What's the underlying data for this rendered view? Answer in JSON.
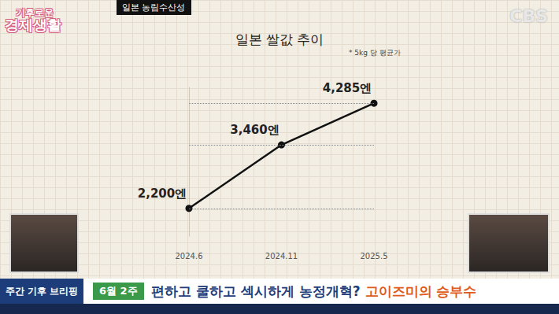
{
  "chart_data": {
    "type": "line",
    "title": "일본 쌀값 추이",
    "subtitle": "* 5kg 당 평균가",
    "categories": [
      "2024.6",
      "2024.11",
      "2025.5"
    ],
    "values": [
      2200,
      3460,
      4285
    ],
    "value_labels": [
      "2,200엔",
      "3,460엔",
      "4,285엔"
    ],
    "color": "#111111",
    "marker": "circle",
    "ylim": [
      1650,
      4600
    ],
    "yticks": [],
    "grid": false,
    "data_labels": true,
    "tick_labels": "x"
  },
  "screen": {
    "source": "일본 농림수산성",
    "logo": [
      "기후로운",
      "경제생활"
    ],
    "network": "CBS",
    "segment": "주간 기후 브리핑",
    "date": "6월 2주",
    "headline": "편하고 쿨하고 섹시하게 농정개혁? ",
    "headline_highlight": "고이즈미의 승부수"
  }
}
